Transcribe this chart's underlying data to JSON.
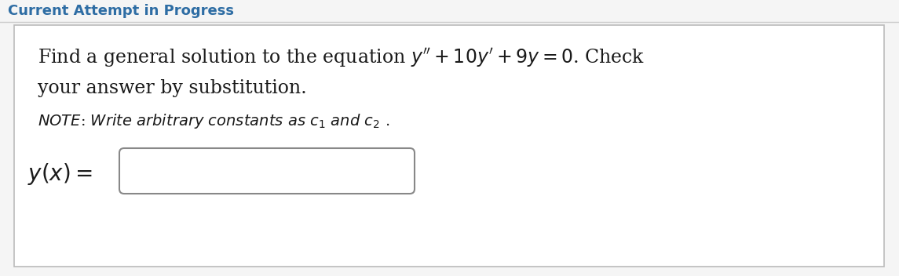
{
  "bg_color": "#f5f5f5",
  "panel_bg": "#ffffff",
  "panel_border": "#bbbbbb",
  "header_text": "Current Attempt in Progress",
  "header_color": "#2e6da4",
  "header_font_size": 13,
  "main_font_size": 17,
  "note_font_size": 14,
  "label_font_size": 17,
  "top_border_color": "#cccccc",
  "text_color": "#1a1a1a",
  "input_box_color": "#888888"
}
